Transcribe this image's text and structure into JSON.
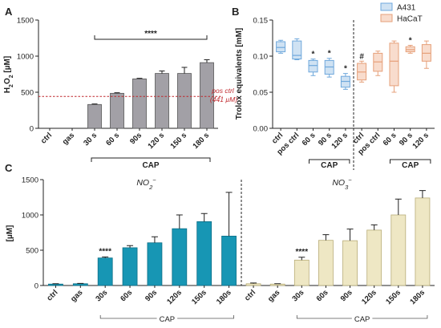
{
  "chart_data": [
    {
      "panel": "A",
      "type": "bar",
      "ylabel": "H2O2 [µM]",
      "ylim": [
        0,
        1500
      ],
      "yticks": [
        "0",
        "500",
        "1000",
        "1500"
      ],
      "categories": [
        "ctrl",
        "gas",
        "30 s",
        "60 s",
        "90s",
        "120 s",
        "150 s",
        "180 s"
      ],
      "values": [
        0,
        0,
        330,
        485,
        685,
        760,
        760,
        910
      ],
      "errors": [
        0,
        0,
        8,
        8,
        8,
        35,
        85,
        40
      ],
      "bar_color": "#a2a0a6",
      "reference_line": {
        "value": 441,
        "label1": "pos ctrl",
        "label2": "(441 µM)",
        "color": "#c0282d"
      },
      "significance": {
        "text": "****",
        "from": "30 s",
        "to": "180 s"
      },
      "group_label": {
        "text": "CAP",
        "from": "30 s",
        "to": "180 s"
      }
    },
    {
      "panel": "B",
      "type": "box",
      "ylabel": "Trolox equivalents [mM]",
      "ylim": [
        0,
        0.15
      ],
      "yticks": [
        "0.00",
        "0.05",
        "0.10",
        "0.15"
      ],
      "categories": [
        "ctrl",
        "pos ctrl",
        "60 s",
        "90 s",
        "120 s",
        "ctrl",
        "pos ctrl",
        "60 s",
        "90 s",
        "120 s"
      ],
      "series": [
        {
          "name": "A431",
          "color": "#6fa8dc",
          "fill": "#cfe2f3"
        },
        {
          "name": "HaCaT",
          "color": "#e6a07a",
          "fill": "#f8dccd"
        }
      ],
      "boxes": [
        {
          "group": "A431",
          "cat": "ctrl",
          "min": 0.104,
          "q1": 0.106,
          "med": 0.112,
          "q3": 0.12,
          "max": 0.122,
          "mark": ""
        },
        {
          "group": "A431",
          "cat": "pos ctrl",
          "min": 0.095,
          "q1": 0.096,
          "med": 0.101,
          "q3": 0.121,
          "max": 0.124,
          "mark": ""
        },
        {
          "group": "A431",
          "cat": "60 s",
          "min": 0.073,
          "q1": 0.078,
          "med": 0.087,
          "q3": 0.094,
          "max": 0.096,
          "mark": "*"
        },
        {
          "group": "A431",
          "cat": "90 s",
          "min": 0.071,
          "q1": 0.075,
          "med": 0.085,
          "q3": 0.094,
          "max": 0.097,
          "mark": "*"
        },
        {
          "group": "A431",
          "cat": "120 s",
          "min": 0.054,
          "q1": 0.057,
          "med": 0.065,
          "q3": 0.072,
          "max": 0.076,
          "mark": "*"
        },
        {
          "group": "HaCaT",
          "cat": "ctrl",
          "min": 0.064,
          "q1": 0.067,
          "med": 0.078,
          "q3": 0.09,
          "max": 0.093,
          "mark": "#"
        },
        {
          "group": "HaCaT",
          "cat": "pos ctrl",
          "min": 0.073,
          "q1": 0.079,
          "med": 0.092,
          "q3": 0.104,
          "max": 0.107,
          "mark": ""
        },
        {
          "group": "HaCaT",
          "cat": "60 s",
          "min": 0.05,
          "q1": 0.059,
          "med": 0.093,
          "q3": 0.118,
          "max": 0.121,
          "mark": ""
        },
        {
          "group": "HaCaT",
          "cat": "90 s",
          "min": 0.104,
          "q1": 0.106,
          "med": 0.109,
          "q3": 0.113,
          "max": 0.115,
          "mark": "*"
        },
        {
          "group": "HaCaT",
          "cat": "120 s",
          "min": 0.083,
          "q1": 0.093,
          "med": 0.104,
          "q3": 0.116,
          "max": 0.121,
          "mark": ""
        }
      ],
      "group_labels": [
        {
          "text": "CAP",
          "from": "60 s",
          "to": "120 s",
          "group": "A431"
        },
        {
          "text": "CAP",
          "from": "60 s",
          "to": "120 s",
          "group": "HaCaT"
        }
      ],
      "legend": "top-right"
    },
    {
      "panel": "C",
      "type": "bar",
      "ylabel": "[µM]",
      "ylim": [
        0,
        1500
      ],
      "yticks": [
        "0",
        "500",
        "1000",
        "1500"
      ],
      "categories": [
        "ctrl",
        "gas",
        "30s",
        "60s",
        "90s",
        "120s",
        "150s",
        "180s"
      ],
      "series": [
        {
          "name": "NO2−",
          "name_base": "NO",
          "name_sub": "2",
          "name_sup": "−",
          "color": "#1796b4",
          "values": [
            20,
            25,
            390,
            535,
            605,
            805,
            905,
            700
          ],
          "errors": [
            5,
            5,
            15,
            30,
            85,
            195,
            115,
            620
          ]
        },
        {
          "name": "NO3−",
          "name_base": "NO",
          "name_sub": "3",
          "name_sup": "−",
          "color": "#eee7c4",
          "values": [
            25,
            20,
            360,
            640,
            635,
            785,
            1000,
            1240
          ],
          "errors": [
            10,
            5,
            40,
            80,
            165,
            75,
            225,
            105
          ]
        }
      ],
      "significance": [
        {
          "series": "NO2−",
          "cat": "30s",
          "text": "****"
        },
        {
          "series": "NO3−",
          "cat": "30s",
          "text": "****"
        }
      ],
      "group_labels": [
        {
          "text": "CAP",
          "series": "NO2−"
        },
        {
          "text": "CAP",
          "series": "NO3−"
        }
      ]
    }
  ]
}
